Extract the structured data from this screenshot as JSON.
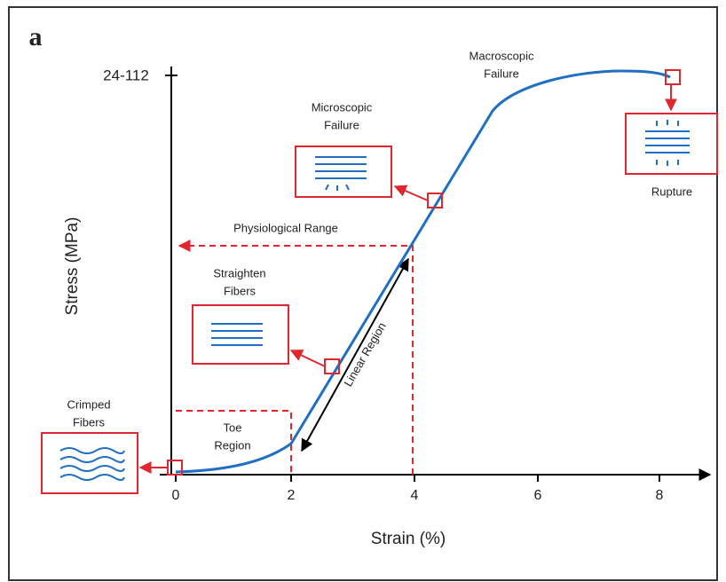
{
  "panel_label": "a",
  "axes": {
    "x_label": "Strain (%)",
    "y_label": "Stress (MPa)",
    "y_tick": "24-112",
    "x_ticks": [
      "0",
      "2",
      "4",
      "6",
      "8"
    ]
  },
  "annotations": {
    "crimped": [
      "Crimped",
      "Fibers"
    ],
    "toe": [
      "Toe",
      "Region"
    ],
    "straighten": [
      "Straighten",
      "Fibers"
    ],
    "linear": "Linear Region",
    "physiological": "Physiological Range",
    "microscopic": [
      "Microscopic",
      "Failure"
    ],
    "macroscopic": [
      "Macroscopic",
      "Failure"
    ],
    "rupture": "Rupture"
  }
}
